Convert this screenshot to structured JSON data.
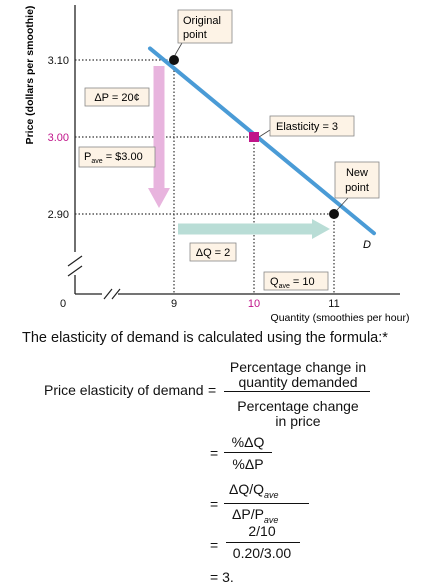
{
  "chart_data": {
    "type": "line",
    "title": "",
    "xlabel": "Quantity (smoothies per hour)",
    "ylabel": "Price (dollars per smoothie)",
    "x_ticks": [
      "0",
      "9",
      "10",
      "11"
    ],
    "y_ticks": [
      "3.10",
      "3.00",
      "2.90"
    ],
    "series": [
      {
        "name": "D",
        "x": [
          8.7,
          11.5
        ],
        "y": [
          3.115,
          2.875
        ]
      }
    ],
    "points": [
      {
        "x": 9,
        "y": 3.1,
        "label": "Original point"
      },
      {
        "x": 10,
        "y": 3.0,
        "label": "Elasticity = 3"
      },
      {
        "x": 11,
        "y": 2.9,
        "label": "New point"
      }
    ],
    "annotations": {
      "delta_p": "ΔP = 20¢",
      "p_ave_main": "P",
      "p_ave_sub": "ave",
      "p_ave_rest": " = $3.00",
      "delta_q": "ΔQ = 2",
      "q_ave_main": "Q",
      "q_ave_sub": "ave",
      "q_ave_rest": " = 10",
      "original_point_1": "Original",
      "original_point_2": "point",
      "new_point_1": "New",
      "new_point_2": "point",
      "elasticity": "Elasticity = 3",
      "curve": "D"
    },
    "colors": {
      "demand_line": "#4a9bd6",
      "highlight_point": "#c0148a",
      "price_arrow": "#e8b4de",
      "quantity_arrow": "#b9ddd6",
      "label_box": "#fdf3e6"
    }
  },
  "text": {
    "intro": "The elasticity of demand is calculated using the formula:*",
    "pe_label": "Price elasticity of demand",
    "eq": "=",
    "num1_line1": "Percentage change in",
    "num1_line2": "quantity demanded",
    "den1_line1": "Percentage change",
    "den1_line2": "in price",
    "num2": "%ΔQ",
    "den2": "%ΔP",
    "num3": "ΔQ/Q",
    "num3_sub": "ave",
    "den3": "ΔP/P",
    "den3_sub": "ave",
    "num4": "2/10",
    "den4": "0.20/3.00",
    "result": "= 3."
  }
}
